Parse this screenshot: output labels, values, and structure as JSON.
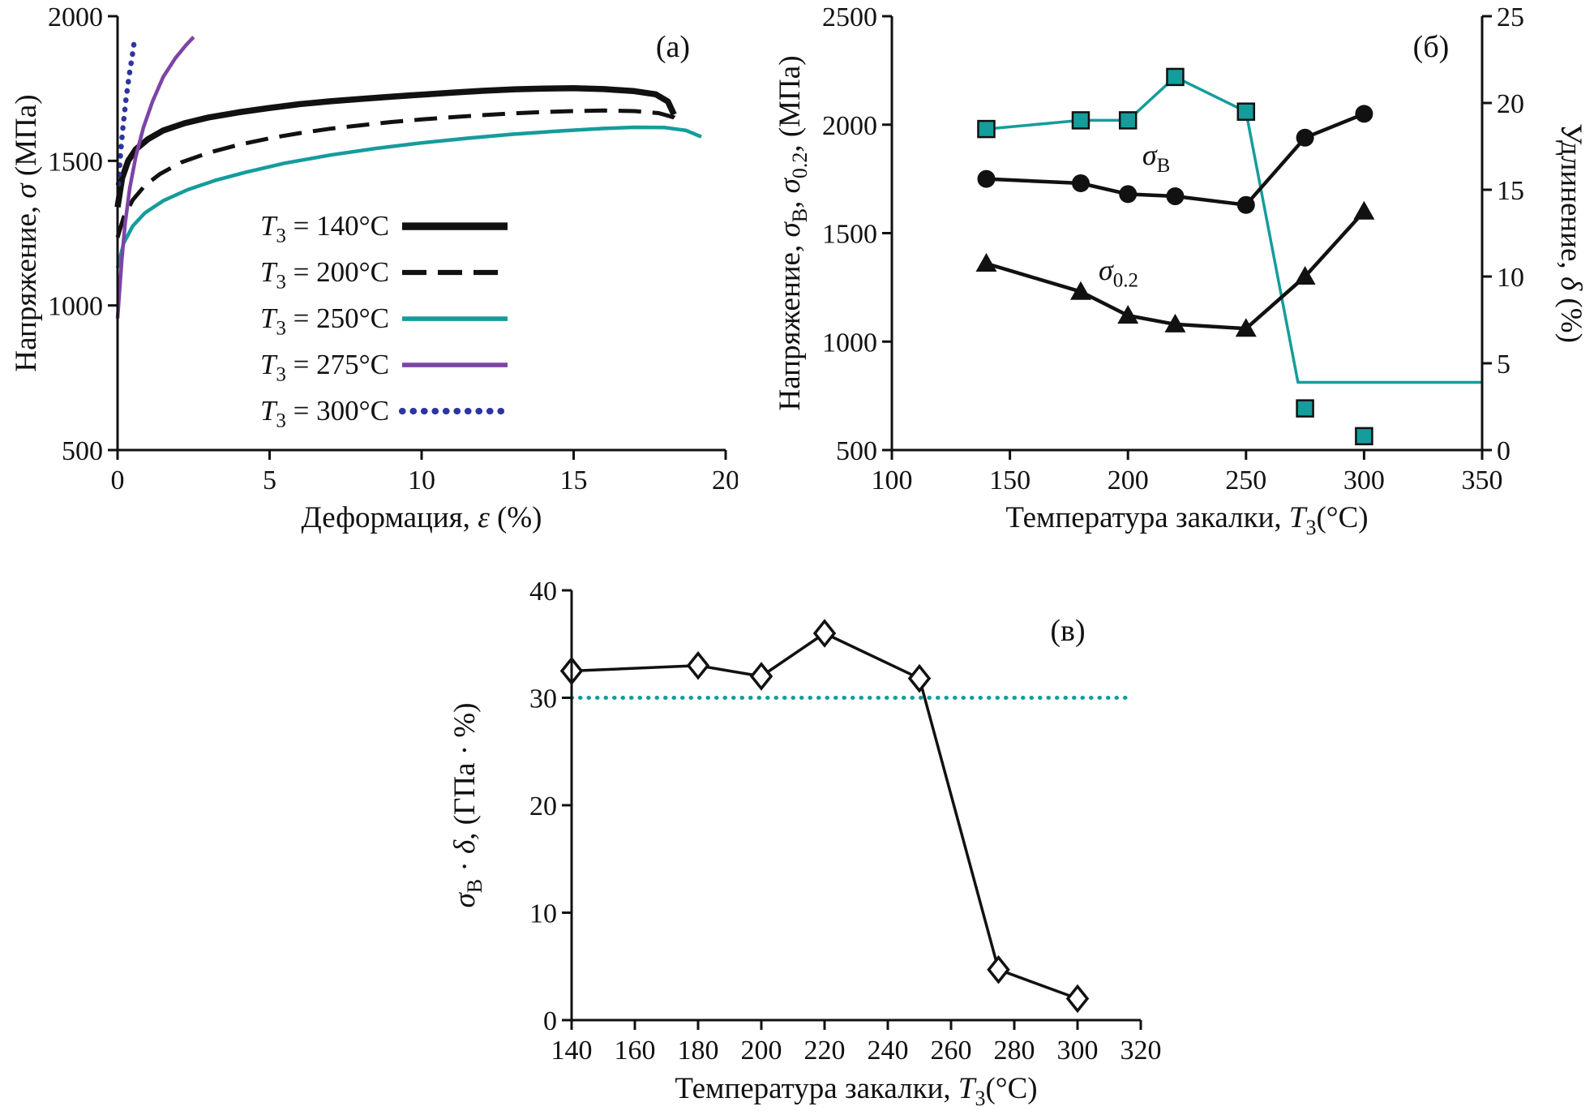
{
  "colors": {
    "black": "#111111",
    "teal": "#159c9c",
    "purple": "#7d44a5",
    "blue": "#2c35a0"
  },
  "chart_data": [
    {
      "id": "a",
      "type": "line",
      "panel_label": "(а)",
      "xlabel_rich": [
        {
          "t": "Деформация, "
        },
        {
          "t": "ε",
          "i": 1
        },
        {
          "t": " (%)"
        }
      ],
      "ylabel_rich": [
        {
          "t": "Напряжение, "
        },
        {
          "t": "σ",
          "i": 1
        },
        {
          "t": " (МПа)"
        }
      ],
      "xlim": [
        0,
        20
      ],
      "ylim": [
        500,
        2000
      ],
      "xticks": [
        0,
        5,
        10,
        15,
        20
      ],
      "yticks": [
        500,
        1000,
        1500,
        2000
      ],
      "legend": true,
      "series": [
        {
          "name": "T140",
          "label_rich": [
            {
              "t": "T",
              "i": 1
            },
            {
              "t": "3",
              "sub": 1
            },
            {
              "t": " = 140°C"
            }
          ],
          "color": "#111111",
          "width": 7.5,
          "x": [
            0,
            0.15,
            0.35,
            0.6,
            1.0,
            1.5,
            2.2,
            3,
            4,
            5,
            6,
            7,
            8,
            9,
            10,
            11,
            12,
            13,
            14,
            15,
            16,
            17,
            17.7,
            18.1,
            18.3
          ],
          "y": [
            1340,
            1440,
            1500,
            1540,
            1575,
            1605,
            1630,
            1650,
            1668,
            1683,
            1696,
            1706,
            1714,
            1722,
            1729,
            1736,
            1742,
            1747,
            1750,
            1751,
            1748,
            1741,
            1730,
            1705,
            1660
          ]
        },
        {
          "name": "T200",
          "label_rich": [
            {
              "t": "T",
              "i": 1
            },
            {
              "t": "3",
              "sub": 1
            },
            {
              "t": " = 200°C"
            }
          ],
          "color": "#111111",
          "width": 5,
          "dash": "28 14",
          "x": [
            0,
            0.2,
            0.5,
            0.9,
            1.4,
            2.1,
            3,
            4,
            5,
            6,
            7,
            8,
            9,
            10,
            11,
            12,
            13,
            14,
            15,
            16,
            17,
            17.8,
            18.3,
            18.6
          ],
          "y": [
            1235,
            1305,
            1365,
            1415,
            1455,
            1495,
            1528,
            1556,
            1578,
            1596,
            1611,
            1623,
            1634,
            1643,
            1651,
            1658,
            1664,
            1669,
            1672,
            1674,
            1672,
            1665,
            1650,
            1625
          ]
        },
        {
          "name": "T250",
          "label_rich": [
            {
              "t": "T",
              "i": 1
            },
            {
              "t": "3",
              "sub": 1
            },
            {
              "t": " = 250°C"
            }
          ],
          "color": "#159c9c",
          "width": 4.5,
          "x": [
            0,
            0.2,
            0.5,
            0.9,
            1.5,
            2.3,
            3.2,
            4.2,
            5.5,
            7,
            8.5,
            10,
            11.5,
            13,
            14.5,
            16,
            17,
            18,
            18.7,
            19.2
          ],
          "y": [
            1130,
            1215,
            1275,
            1320,
            1362,
            1400,
            1432,
            1460,
            1492,
            1520,
            1543,
            1562,
            1578,
            1592,
            1603,
            1612,
            1616,
            1615,
            1605,
            1583
          ]
        },
        {
          "name": "T275",
          "label_rich": [
            {
              "t": "T",
              "i": 1
            },
            {
              "t": "3",
              "sub": 1
            },
            {
              "t": " = 275°C"
            }
          ],
          "color": "#7d44a5",
          "width": 4.5,
          "x": [
            0,
            0.06,
            0.14,
            0.25,
            0.4,
            0.6,
            0.85,
            1.15,
            1.5,
            1.9,
            2.25,
            2.5
          ],
          "y": [
            955,
            1045,
            1160,
            1285,
            1405,
            1515,
            1615,
            1705,
            1790,
            1855,
            1900,
            1928
          ]
        },
        {
          "name": "T300",
          "label_rich": [
            {
              "t": "T",
              "i": 1
            },
            {
              "t": "3",
              "sub": 1
            },
            {
              "t": " = 300°C"
            }
          ],
          "color": "#2c35a0",
          "width": 6.5,
          "dash": "0.5 11",
          "cap": "round",
          "x": [
            0.03,
            0.1,
            0.18,
            0.28,
            0.38,
            0.48,
            0.55
          ],
          "y": [
            1420,
            1530,
            1620,
            1715,
            1795,
            1860,
            1912
          ]
        }
      ]
    },
    {
      "id": "b",
      "type": "line",
      "panel_label": "(б)",
      "xlabel_rich": [
        {
          "t": "Температура закалки, "
        },
        {
          "t": "T",
          "i": 1
        },
        {
          "t": "3",
          "sub": 1
        },
        {
          "t": "(°C)"
        }
      ],
      "ylabel_rich": [
        {
          "t": "Напряжение, "
        },
        {
          "t": "σ",
          "i": 1
        },
        {
          "t": "B",
          "sub": 1
        },
        {
          "t": ", "
        },
        {
          "t": "σ",
          "i": 1
        },
        {
          "t": "0.2",
          "sub": 1
        },
        {
          "t": ", (МПа)"
        }
      ],
      "ylabel2_rich": [
        {
          "t": "Удлинение, "
        },
        {
          "t": "δ",
          "i": 1
        },
        {
          "t": " (%)"
        }
      ],
      "xlim": [
        100,
        350
      ],
      "ylim": [
        500,
        2500
      ],
      "y2lim": [
        0,
        25
      ],
      "xticks": [
        100,
        150,
        200,
        250,
        300,
        350
      ],
      "yticks": [
        500,
        1000,
        1500,
        2000,
        2500
      ],
      "y2ticks": [
        0,
        5,
        10,
        15,
        20,
        25
      ],
      "series": [
        {
          "name": "delta-line",
          "axis": "right",
          "color": "#159c9c",
          "width": 3.5,
          "x": [
            140,
            180,
            200,
            220,
            250,
            272,
            350
          ],
          "y": [
            18.5,
            19,
            19,
            21.5,
            19.5,
            3.9,
            3.9
          ]
        },
        {
          "name": "delta-markers",
          "axis": "right",
          "color": "#159c9c",
          "width": 0,
          "marker": "square",
          "mfill": "#159c9c",
          "x": [
            140,
            180,
            200,
            220,
            250,
            275,
            300
          ],
          "y": [
            18.5,
            19,
            19,
            21.5,
            19.5,
            2.4,
            0.8
          ]
        },
        {
          "name": "sigma-b",
          "axis": "left",
          "color": "#111111",
          "width": 4.5,
          "marker": "circle",
          "mfill": "#111111",
          "x": [
            140,
            180,
            200,
            220,
            250,
            275,
            300
          ],
          "y": [
            1750,
            1730,
            1680,
            1670,
            1630,
            1940,
            2050
          ]
        },
        {
          "name": "sigma-02",
          "axis": "left",
          "color": "#111111",
          "width": 4.5,
          "marker": "triangle",
          "mfill": "#111111",
          "x": [
            140,
            180,
            200,
            220,
            250,
            275,
            300
          ],
          "y": [
            1360,
            1230,
            1120,
            1080,
            1060,
            1300,
            1600
          ]
        }
      ],
      "annotations": [
        {
          "name": "sigma-b-label",
          "x": 212,
          "y": 1815,
          "rich": [
            {
              "t": "σ",
              "i": 1
            },
            {
              "t": "B",
              "sub": 1
            }
          ]
        },
        {
          "name": "sigma-02-label",
          "x": 196,
          "y": 1285,
          "rich": [
            {
              "t": "σ",
              "i": 1
            },
            {
              "t": "0.2",
              "sub": 1
            }
          ]
        }
      ]
    },
    {
      "id": "c",
      "type": "line",
      "panel_label": "(в)",
      "xlabel_rich": [
        {
          "t": "Температура закалки, "
        },
        {
          "t": "T",
          "i": 1
        },
        {
          "t": "3",
          "sub": 1
        },
        {
          "t": "(°C)"
        }
      ],
      "ylabel_rich": [
        {
          "t": "σ",
          "i": 1
        },
        {
          "t": "B",
          "sub": 1
        },
        {
          "t": " · "
        },
        {
          "t": "δ",
          "i": 1
        },
        {
          "t": ", (ГПа · %)"
        }
      ],
      "xlim": [
        140,
        320
      ],
      "ylim": [
        0,
        40
      ],
      "xticks": [
        140,
        160,
        180,
        200,
        220,
        240,
        260,
        280,
        300,
        320
      ],
      "yticks": [
        0,
        10,
        20,
        30,
        40
      ],
      "series": [
        {
          "name": "reference-30",
          "color": "#159c9c",
          "width": 5,
          "dash": "0.5 10",
          "cap": "round",
          "x": [
            140,
            317
          ],
          "y": [
            30,
            30
          ]
        },
        {
          "name": "sigma-delta",
          "color": "#111111",
          "width": 3.5,
          "marker": "diamond",
          "mfill": "#ffffff",
          "x": [
            140,
            180,
            200,
            220,
            250,
            275,
            300
          ],
          "y": [
            32.5,
            33,
            32,
            36,
            31.8,
            4.7,
            2
          ]
        }
      ]
    }
  ]
}
